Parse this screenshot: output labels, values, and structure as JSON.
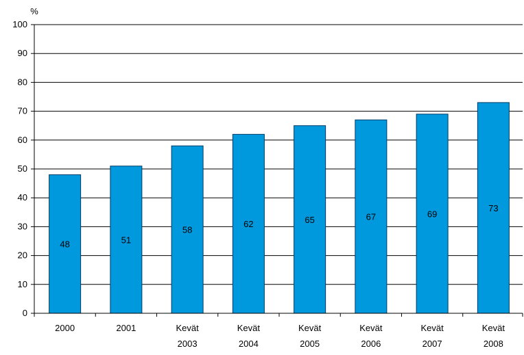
{
  "chart_data": {
    "type": "bar",
    "unit_label": "%",
    "categories": [
      [
        "2000"
      ],
      [
        "2001"
      ],
      [
        "Kevät",
        "2003"
      ],
      [
        "Kevät",
        "2004"
      ],
      [
        "Kevät",
        "2005"
      ],
      [
        "Kevät",
        "2006"
      ],
      [
        "Kevät",
        "2007"
      ],
      [
        "Kevät",
        "2008"
      ]
    ],
    "values": [
      48,
      51,
      58,
      62,
      65,
      67,
      69,
      73
    ],
    "data_labels": [
      "48",
      "51",
      "58",
      "62",
      "65",
      "67",
      "69",
      "73"
    ],
    "y_ticks": [
      "0",
      "10",
      "20",
      "30",
      "40",
      "50",
      "60",
      "70",
      "80",
      "90",
      "100"
    ],
    "ylim": [
      0,
      100
    ],
    "grid": true,
    "legend": "none",
    "colors": {
      "bar_fill": "#0099dd",
      "bar_stroke": "#003a66",
      "grid": "#000000",
      "axis": "#000000"
    }
  }
}
